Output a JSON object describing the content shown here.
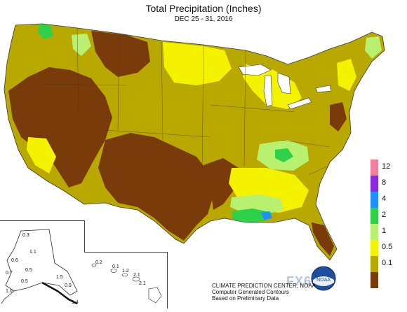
{
  "title": "Total Precipitation (Inches)",
  "subtitle": "DEC 25 - 31, 2016",
  "legend": [
    {
      "label": "12",
      "color": "#f07fa0"
    },
    {
      "label": "8",
      "color": "#8a2be2"
    },
    {
      "label": "4",
      "color": "#1e90ff"
    },
    {
      "label": "2",
      "color": "#2fd04a"
    },
    {
      "label": "1",
      "color": "#b8f070"
    },
    {
      "label": "0.5",
      "color": "#f5f200"
    },
    {
      "label": "0.1",
      "color": "#b9a800"
    },
    {
      "label": "",
      "color": "#7a3b0a"
    }
  ],
  "alaska_values": [
    "0.3",
    "1.1",
    "0.6",
    "0.7",
    "0.5",
    "0.5",
    "1.5",
    "0.9",
    "1.4",
    "1.0"
  ],
  "hawaii_values": [
    "0.2",
    "0.1",
    "1.2",
    "2.1",
    "2.1"
  ],
  "credits": {
    "line1": "CLIMATE PREDICTION CENTER, NOAA",
    "line2": "Computer Generated Contours",
    "line3": "Based on Preliminary Data"
  },
  "logo_text": "NOAA",
  "watermark": "FX6"
}
